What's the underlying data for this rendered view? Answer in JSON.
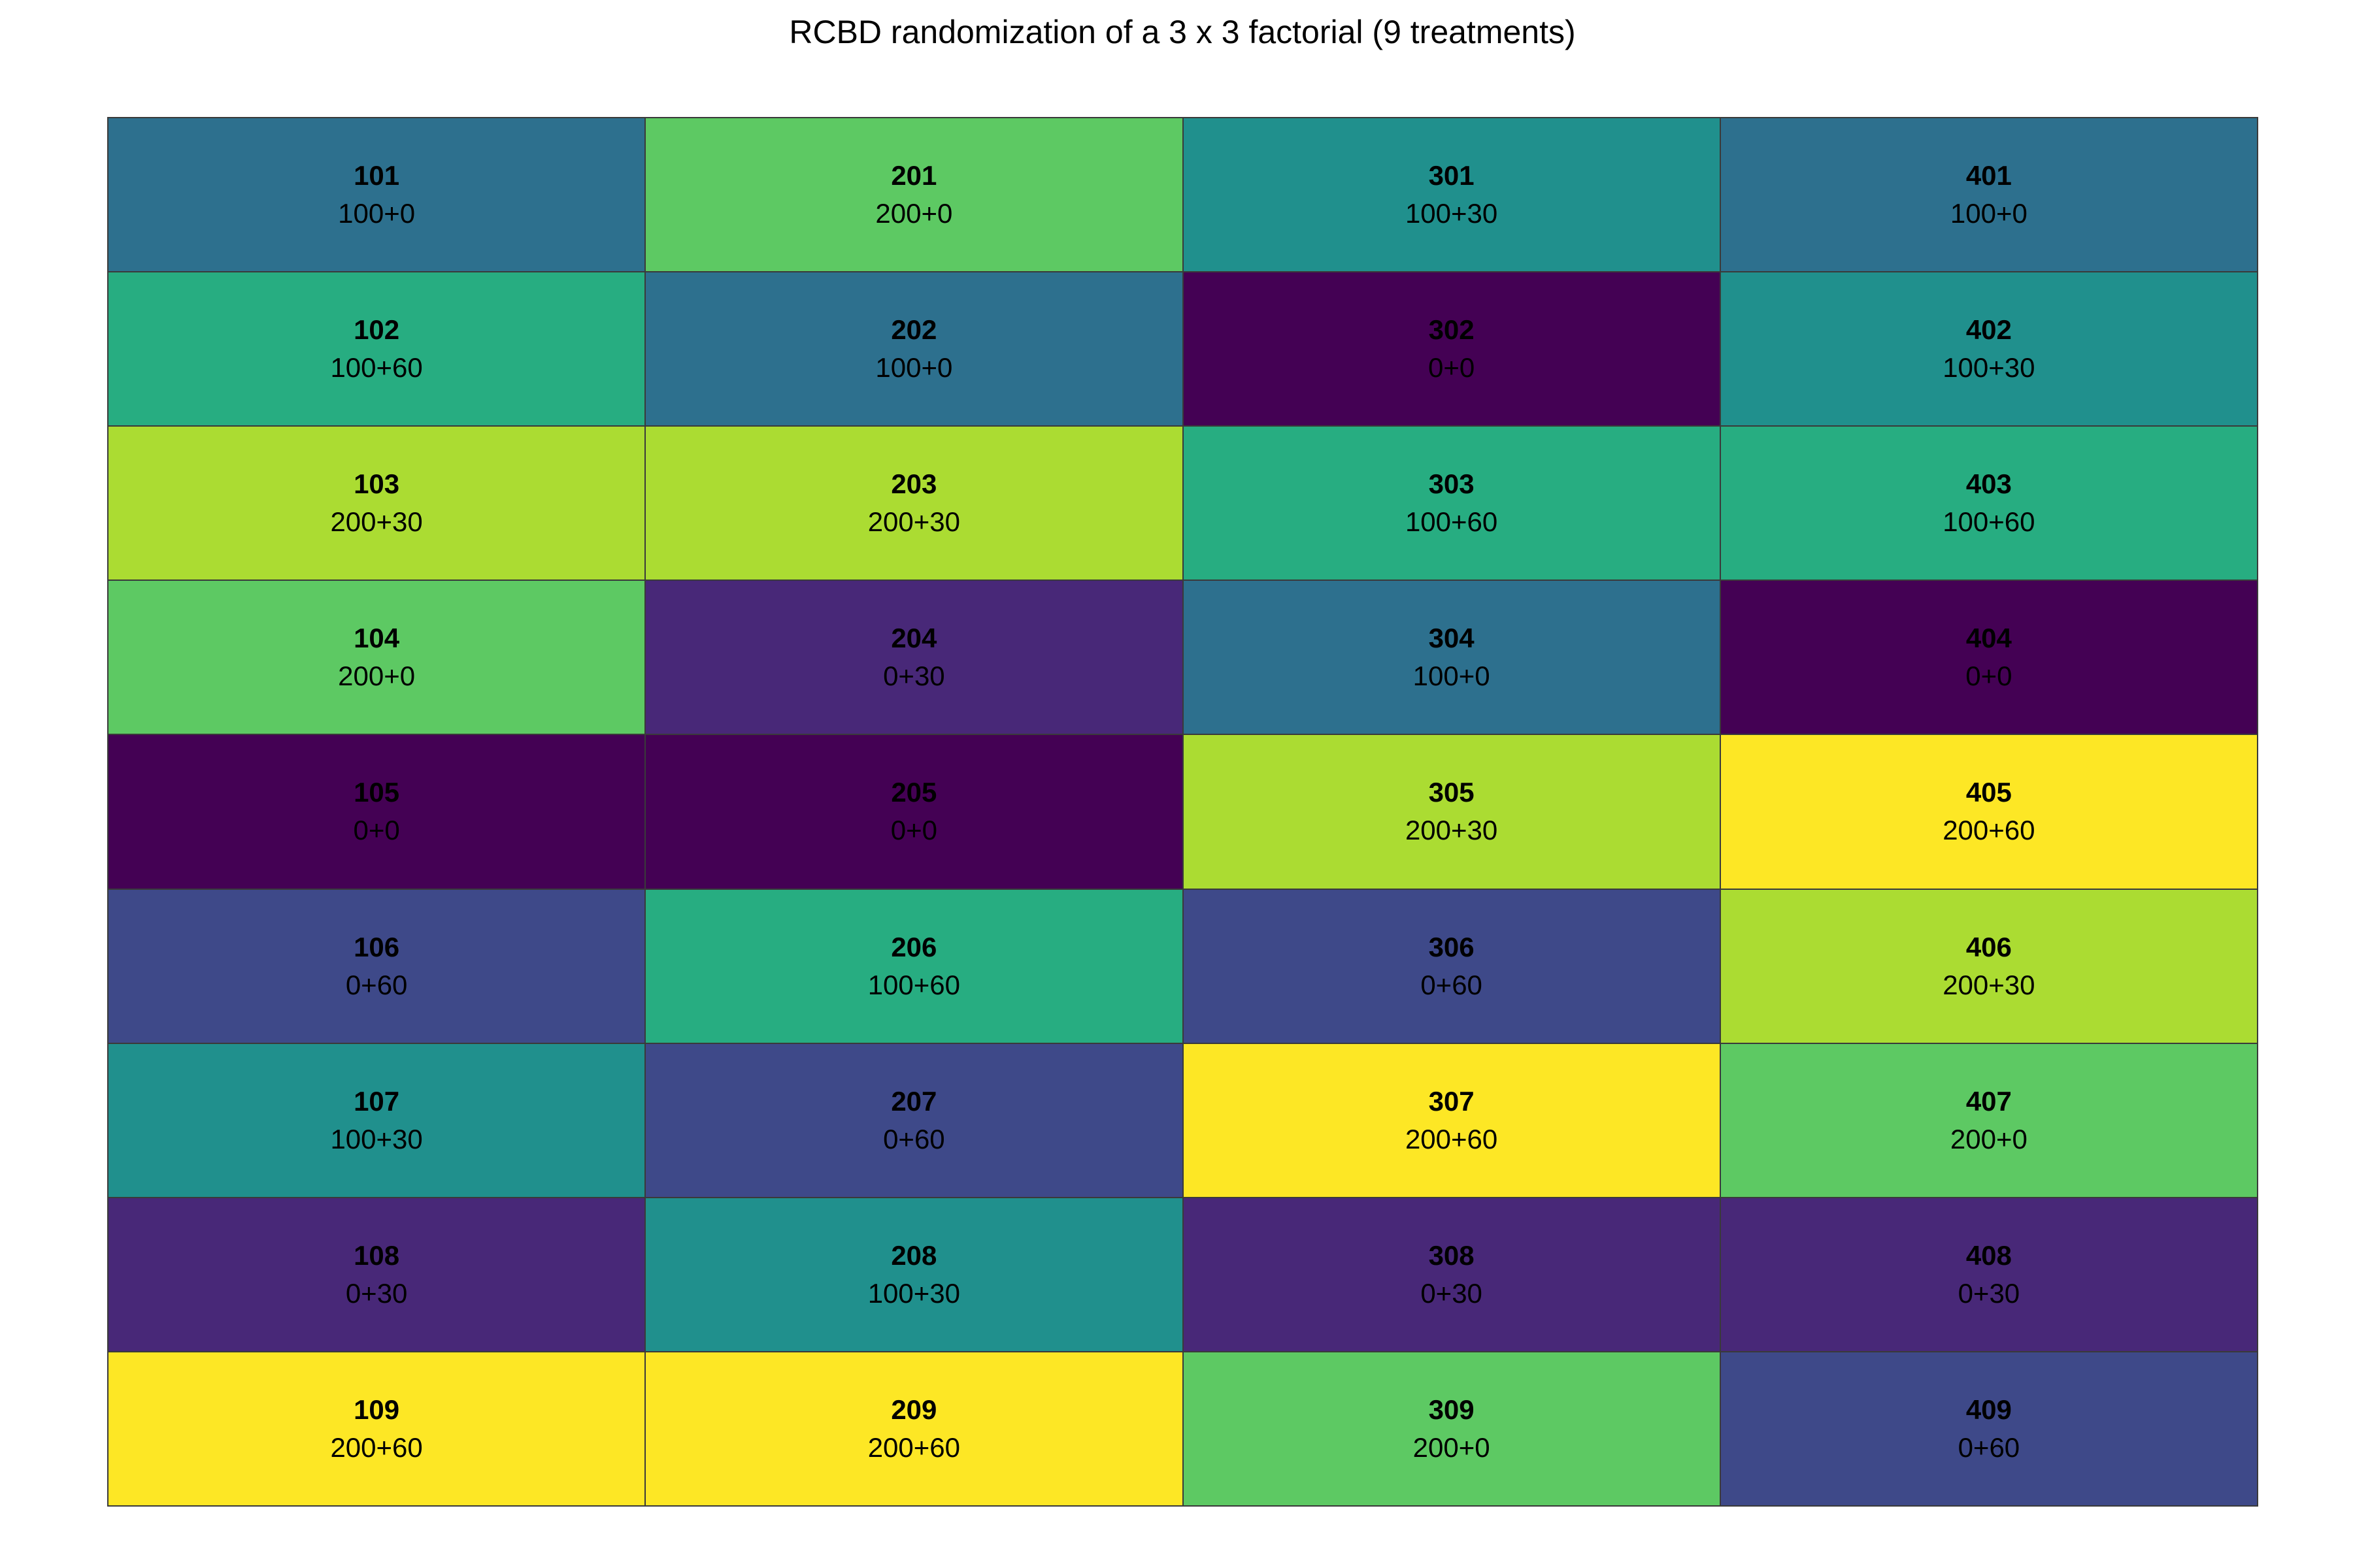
{
  "title": "RCBD randomization of a 3 x 3 factorial (9 treatments)",
  "treatment_colors": {
    "0+0": "#440154",
    "0+30": "#482878",
    "0+60": "#3e4989",
    "100+0": "#2d708e",
    "100+30": "#20908d",
    "100+60": "#27ad81",
    "200+0": "#5dc963",
    "200+30": "#abdc32",
    "200+60": "#fde725"
  },
  "chart_data": {
    "type": "heatmap",
    "title": "RCBD randomization of a 3 x 3 factorial (9 treatments)",
    "blocks": 4,
    "rows": 9,
    "columns": [
      [
        {
          "plot": "101",
          "treatment": "100+0"
        },
        {
          "plot": "102",
          "treatment": "100+60"
        },
        {
          "plot": "103",
          "treatment": "200+30"
        },
        {
          "plot": "104",
          "treatment": "200+0"
        },
        {
          "plot": "105",
          "treatment": "0+0"
        },
        {
          "plot": "106",
          "treatment": "0+60"
        },
        {
          "plot": "107",
          "treatment": "100+30"
        },
        {
          "plot": "108",
          "treatment": "0+30"
        },
        {
          "plot": "109",
          "treatment": "200+60"
        }
      ],
      [
        {
          "plot": "201",
          "treatment": "200+0"
        },
        {
          "plot": "202",
          "treatment": "100+0"
        },
        {
          "plot": "203",
          "treatment": "200+30"
        },
        {
          "plot": "204",
          "treatment": "0+30"
        },
        {
          "plot": "205",
          "treatment": "0+0"
        },
        {
          "plot": "206",
          "treatment": "100+60"
        },
        {
          "plot": "207",
          "treatment": "0+60"
        },
        {
          "plot": "208",
          "treatment": "100+30"
        },
        {
          "plot": "209",
          "treatment": "200+60"
        }
      ],
      [
        {
          "plot": "301",
          "treatment": "100+30"
        },
        {
          "plot": "302",
          "treatment": "0+0"
        },
        {
          "plot": "303",
          "treatment": "100+60"
        },
        {
          "plot": "304",
          "treatment": "100+0"
        },
        {
          "plot": "305",
          "treatment": "200+30"
        },
        {
          "plot": "306",
          "treatment": "0+60"
        },
        {
          "plot": "307",
          "treatment": "200+60"
        },
        {
          "plot": "308",
          "treatment": "0+30"
        },
        {
          "plot": "309",
          "treatment": "200+0"
        }
      ],
      [
        {
          "plot": "401",
          "treatment": "100+0"
        },
        {
          "plot": "402",
          "treatment": "100+30"
        },
        {
          "plot": "403",
          "treatment": "100+60"
        },
        {
          "plot": "404",
          "treatment": "0+0"
        },
        {
          "plot": "405",
          "treatment": "200+60"
        },
        {
          "plot": "406",
          "treatment": "200+30"
        },
        {
          "plot": "407",
          "treatment": "200+0"
        },
        {
          "plot": "408",
          "treatment": "0+30"
        },
        {
          "plot": "409",
          "treatment": "0+60"
        }
      ]
    ]
  }
}
